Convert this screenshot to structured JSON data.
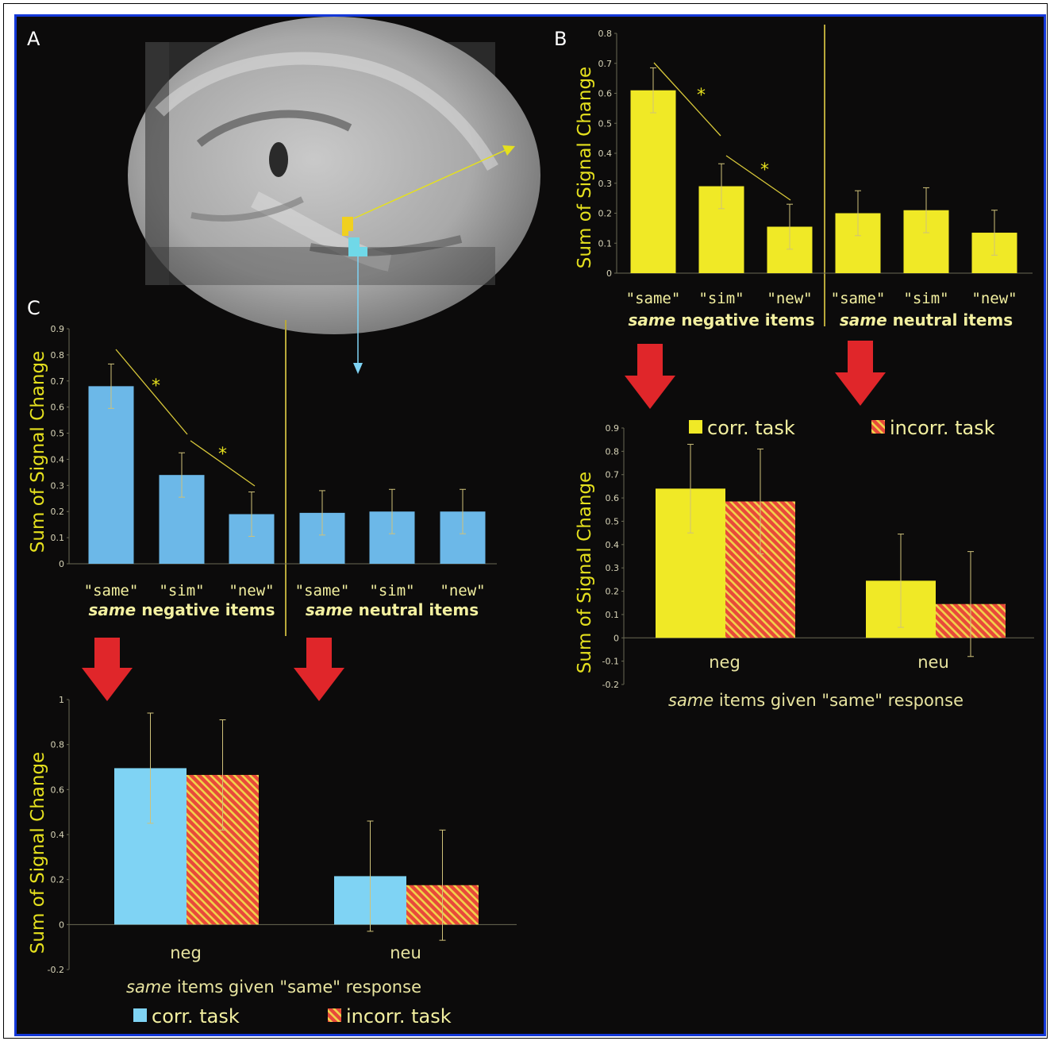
{
  "panel_labels": {
    "a": "A",
    "b": "B",
    "c": "C"
  },
  "colors": {
    "background": "#0c0b0b",
    "frame_border": "#1438d8",
    "yellow": "#f0e926",
    "blue": "#6cb8e8",
    "light_blue": "#7fd3f4",
    "red_arrow": "#e0262a",
    "hatch_bg": "#e8493a",
    "hatch_line": "#f0d44a",
    "axis_text": "#d8d4b8",
    "label_text": "#f3f0a0",
    "ylabel": "#e5e01e"
  },
  "brain_image": {
    "name": "sagittal-brain-slice",
    "roi_colors": [
      "#f0d020",
      "#70d8e8"
    ]
  },
  "chart_data": [
    {
      "id": "B-top",
      "type": "bar",
      "ylabel": "Sum of Signal Change",
      "ylim": [
        0,
        0.8
      ],
      "yticks": [
        "0",
        "0.1",
        "0.2",
        "0.3",
        "0.4",
        "0.5",
        "0.6",
        "0.7",
        "0.8"
      ],
      "categories": [
        "\"same\"",
        "\"sim\"",
        "\"new\"",
        "\"same\"",
        "\"sim\"",
        "\"new\""
      ],
      "groups": [
        {
          "italic": "same",
          "rest": " negative items"
        },
        {
          "italic": "same",
          "rest": " neutral items"
        }
      ],
      "values": [
        0.61,
        0.29,
        0.155,
        0.2,
        0.21,
        0.135
      ],
      "errors": [
        0.075,
        0.075,
        0.075,
        0.075,
        0.075,
        0.075
      ],
      "significance": [
        "*",
        "*"
      ],
      "color": "#f0e926"
    },
    {
      "id": "B-bottom",
      "type": "bar",
      "ylabel": "Sum of Signal Change",
      "ylim": [
        -0.2,
        0.9
      ],
      "yticks": [
        "-0.2",
        "-0.1",
        "0",
        "0.1",
        "0.2",
        "0.3",
        "0.4",
        "0.5",
        "0.6",
        "0.7",
        "0.8",
        "0.9"
      ],
      "categories": [
        "neg",
        "neu"
      ],
      "xlabel": {
        "italic": "same",
        "rest": " items given \"same\" response"
      },
      "series": [
        {
          "name": "corr. task",
          "values": [
            0.64,
            0.245
          ],
          "errors": [
            0.19,
            0.2
          ]
        },
        {
          "name": "incorr. task",
          "values": [
            0.585,
            0.145
          ],
          "errors": [
            0.225,
            0.225
          ]
        }
      ]
    },
    {
      "id": "C-top",
      "type": "bar",
      "ylabel": "Sum of Signal Change",
      "ylim": [
        0,
        0.9
      ],
      "yticks": [
        "0",
        "0.1",
        "0.2",
        "0.3",
        "0.4",
        "0.5",
        "0.6",
        "0.7",
        "0.8",
        "0.9"
      ],
      "categories": [
        "\"same\"",
        "\"sim\"",
        "\"new\"",
        "\"same\"",
        "\"sim\"",
        "\"new\""
      ],
      "groups": [
        {
          "italic": "same",
          "rest": " negative items"
        },
        {
          "italic": "same",
          "rest": " neutral items"
        }
      ],
      "values": [
        0.68,
        0.34,
        0.19,
        0.195,
        0.2,
        0.2
      ],
      "errors": [
        0.085,
        0.085,
        0.085,
        0.085,
        0.085,
        0.085
      ],
      "significance": [
        "*",
        "*"
      ],
      "color": "#6cb8e8"
    },
    {
      "id": "C-bottom",
      "type": "bar",
      "ylabel": "Sum of Signal Change",
      "ylim": [
        -0.2,
        1
      ],
      "yticks": [
        "-0.2",
        "0",
        "0.2",
        "0.4",
        "0.6",
        "0.8",
        "1"
      ],
      "categories": [
        "neg",
        "neu"
      ],
      "xlabel": {
        "italic": "same",
        "rest": " items given \"same\" response"
      },
      "series": [
        {
          "name": "corr. task",
          "values": [
            0.695,
            0.215
          ],
          "errors": [
            0.245,
            0.245
          ]
        },
        {
          "name": "incorr. task",
          "values": [
            0.665,
            0.175
          ],
          "errors": [
            0.245,
            0.245
          ]
        }
      ]
    }
  ]
}
